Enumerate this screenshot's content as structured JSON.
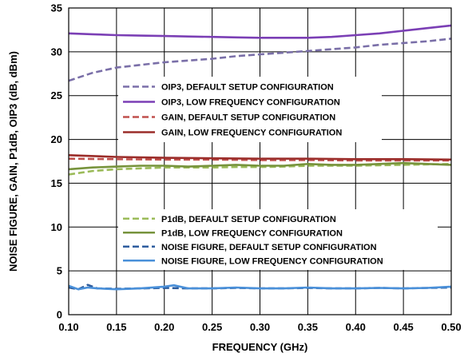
{
  "chart_data": {
    "type": "line",
    "title": "",
    "xlabel": "FREQUENCY (GHz)",
    "ylabel": "NOISE FIGURE, GAIN, P1dB, OIP3 (dB, dBm)",
    "xlim": [
      0.1,
      0.5
    ],
    "ylim": [
      0,
      35
    ],
    "x_ticks": [
      "0.10",
      "0.15",
      "0.20",
      "0.25",
      "0.30",
      "0.35",
      "0.40",
      "0.45",
      "0.50"
    ],
    "y_ticks": [
      "0",
      "5",
      "10",
      "15",
      "20",
      "25",
      "30",
      "35"
    ],
    "grid": true,
    "legends": [
      {
        "placement": "upper-center",
        "entries": [
          {
            "label": "OIP3, DEFAULT SETUP CONFIGURATION",
            "series_index": 0
          },
          {
            "label": "OIP3, LOW FREQUENCY CONFIGURATION",
            "series_index": 1
          },
          {
            "label": "GAIN, DEFAULT SETUP CONFIGURATION",
            "series_index": 2
          },
          {
            "label": "GAIN, LOW FREQUENCY CONFIGURATION",
            "series_index": 3
          }
        ]
      },
      {
        "placement": "lower-center",
        "entries": [
          {
            "label": "P1dB, DEFAULT SETUP CONFIGURATION",
            "series_index": 4
          },
          {
            "label": "P1dB, LOW FREQUENCY CONFIGURATION",
            "series_index": 5
          },
          {
            "label": "NOISE FIGURE, DEFAULT SETUP CONFIGURATION",
            "series_index": 6
          },
          {
            "label": "NOISE FIGURE, LOW FREQUENCY CONFIGURATION",
            "series_index": 7
          }
        ]
      }
    ],
    "series": [
      {
        "name": "OIP3, DEFAULT SETUP CONFIGURATION",
        "color": "#7a6fa8",
        "dash": true,
        "x": [
          0.1,
          0.125,
          0.15,
          0.175,
          0.2,
          0.225,
          0.25,
          0.275,
          0.3,
          0.325,
          0.35,
          0.375,
          0.4,
          0.425,
          0.45,
          0.475,
          0.5
        ],
        "y": [
          26.7,
          27.6,
          28.2,
          28.5,
          28.8,
          29.0,
          29.2,
          29.5,
          29.7,
          29.9,
          30.1,
          30.3,
          30.5,
          30.8,
          31.0,
          31.2,
          31.5
        ]
      },
      {
        "name": "OIP3, LOW FREQUENCY CONFIGURATION",
        "color": "#7b3fb5",
        "dash": false,
        "x": [
          0.1,
          0.125,
          0.15,
          0.175,
          0.2,
          0.225,
          0.25,
          0.275,
          0.3,
          0.325,
          0.35,
          0.375,
          0.4,
          0.425,
          0.45,
          0.475,
          0.5
        ],
        "y": [
          32.1,
          32.0,
          31.9,
          31.85,
          31.8,
          31.75,
          31.7,
          31.65,
          31.6,
          31.6,
          31.6,
          31.7,
          31.9,
          32.1,
          32.4,
          32.7,
          33.0
        ]
      },
      {
        "name": "GAIN, DEFAULT SETUP CONFIGURATION",
        "color": "#c0504d",
        "dash": true,
        "x": [
          0.1,
          0.15,
          0.2,
          0.25,
          0.3,
          0.35,
          0.4,
          0.45,
          0.5
        ],
        "y": [
          17.8,
          17.75,
          17.7,
          17.7,
          17.65,
          17.65,
          17.6,
          17.6,
          17.6
        ]
      },
      {
        "name": "GAIN, LOW FREQUENCY CONFIGURATION",
        "color": "#9b2d2a",
        "dash": false,
        "x": [
          0.1,
          0.15,
          0.2,
          0.25,
          0.3,
          0.35,
          0.4,
          0.45,
          0.5
        ],
        "y": [
          18.2,
          18.0,
          17.9,
          17.85,
          17.8,
          17.8,
          17.75,
          17.75,
          17.7
        ]
      },
      {
        "name": "P1dB, DEFAULT SETUP CONFIGURATION",
        "color": "#9bbb59",
        "dash": true,
        "x": [
          0.1,
          0.125,
          0.15,
          0.175,
          0.2,
          0.225,
          0.25,
          0.275,
          0.3,
          0.325,
          0.35,
          0.375,
          0.4,
          0.425,
          0.45,
          0.475,
          0.5
        ],
        "y": [
          16.0,
          16.4,
          16.6,
          16.7,
          16.8,
          16.8,
          16.8,
          16.85,
          16.85,
          16.9,
          17.0,
          17.0,
          17.0,
          17.05,
          17.1,
          17.15,
          17.2
        ]
      },
      {
        "name": "P1dB, LOW FREQUENCY CONFIGURATION",
        "color": "#77933c",
        "dash": false,
        "x": [
          0.1,
          0.125,
          0.15,
          0.175,
          0.2,
          0.225,
          0.25,
          0.275,
          0.3,
          0.325,
          0.35,
          0.375,
          0.4,
          0.425,
          0.45,
          0.475,
          0.5
        ],
        "y": [
          16.6,
          16.8,
          16.9,
          17.0,
          17.0,
          16.9,
          17.0,
          17.1,
          17.0,
          17.0,
          17.2,
          17.1,
          17.1,
          17.2,
          17.3,
          17.2,
          17.1
        ]
      },
      {
        "name": "NOISE FIGURE, DEFAULT SETUP CONFIGURATION",
        "color": "#2e5d9e",
        "dash": true,
        "x": [
          0.1,
          0.11,
          0.12,
          0.13,
          0.15,
          0.175,
          0.2,
          0.225,
          0.25,
          0.275,
          0.3,
          0.325,
          0.35,
          0.375,
          0.4,
          0.425,
          0.45,
          0.475,
          0.5
        ],
        "y": [
          3.1,
          2.9,
          3.4,
          3.0,
          2.95,
          3.0,
          3.05,
          3.0,
          3.0,
          3.05,
          3.0,
          3.0,
          3.05,
          3.0,
          3.0,
          3.05,
          3.0,
          3.05,
          3.1
        ]
      },
      {
        "name": "NOISE FIGURE, LOW FREQUENCY CONFIGURATION",
        "color": "#4a90d9",
        "dash": false,
        "x": [
          0.1,
          0.11,
          0.12,
          0.13,
          0.15,
          0.175,
          0.2,
          0.21,
          0.225,
          0.25,
          0.275,
          0.3,
          0.325,
          0.35,
          0.375,
          0.4,
          0.425,
          0.45,
          0.475,
          0.5
        ],
        "y": [
          3.3,
          2.9,
          3.1,
          3.0,
          2.9,
          3.0,
          3.2,
          3.35,
          3.0,
          3.0,
          3.1,
          3.0,
          3.0,
          3.1,
          3.0,
          3.0,
          3.05,
          3.0,
          3.05,
          3.2
        ]
      }
    ]
  }
}
